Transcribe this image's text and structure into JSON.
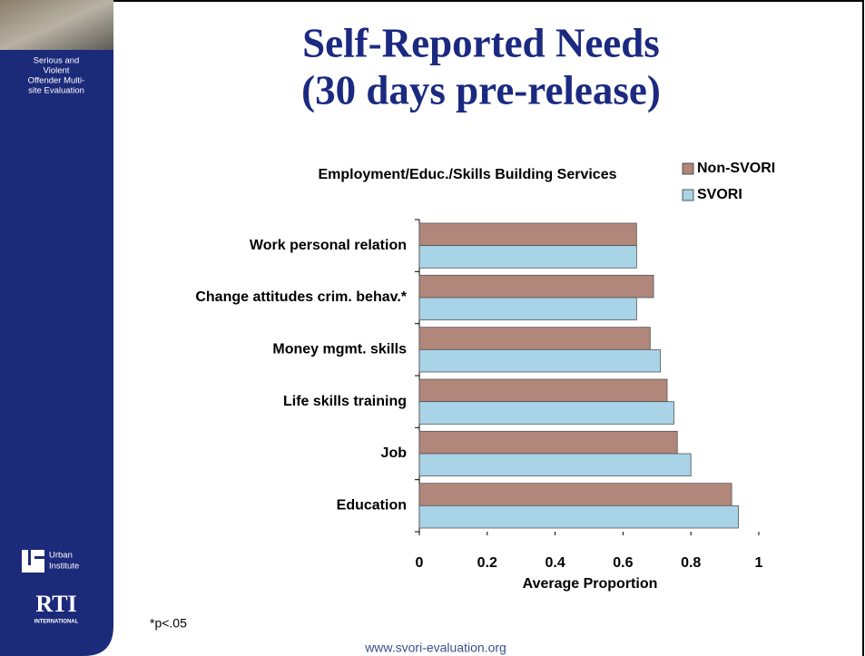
{
  "sidebar": {
    "tagline": [
      "Serious and",
      "Violent",
      "Offender Multi-",
      "site Evaluation"
    ],
    "urban_logo": [
      "Urban",
      "Institute"
    ],
    "rti_logo": [
      "RTI",
      "INTERNATIONAL"
    ]
  },
  "slide": {
    "title_lines": [
      "Self-Reported Needs",
      "(30 days pre-release)"
    ],
    "footnote": "*p<.05",
    "url": "www.svori-evaluation.org"
  },
  "chart_data": {
    "type": "hbar",
    "title": "Employment/Educ./Skills Building Services",
    "categories": [
      "Work personal relation",
      "Change attitudes crim. behav.*",
      "Money mgmt. skills",
      "Life skills training",
      "Job",
      "Education"
    ],
    "series": [
      {
        "name": "Non-SVORI",
        "color": "#b0877a",
        "values": [
          0.64,
          0.69,
          0.68,
          0.73,
          0.76,
          0.92
        ]
      },
      {
        "name": "SVORI",
        "color": "#a9d3e6",
        "values": [
          0.64,
          0.64,
          0.71,
          0.75,
          0.8,
          0.94
        ]
      }
    ],
    "xlim": [
      0,
      1
    ],
    "xticks": [
      0,
      0.2,
      0.4,
      0.6,
      0.8,
      1
    ],
    "x_label": "Average Proportion",
    "legend": "top-right"
  }
}
